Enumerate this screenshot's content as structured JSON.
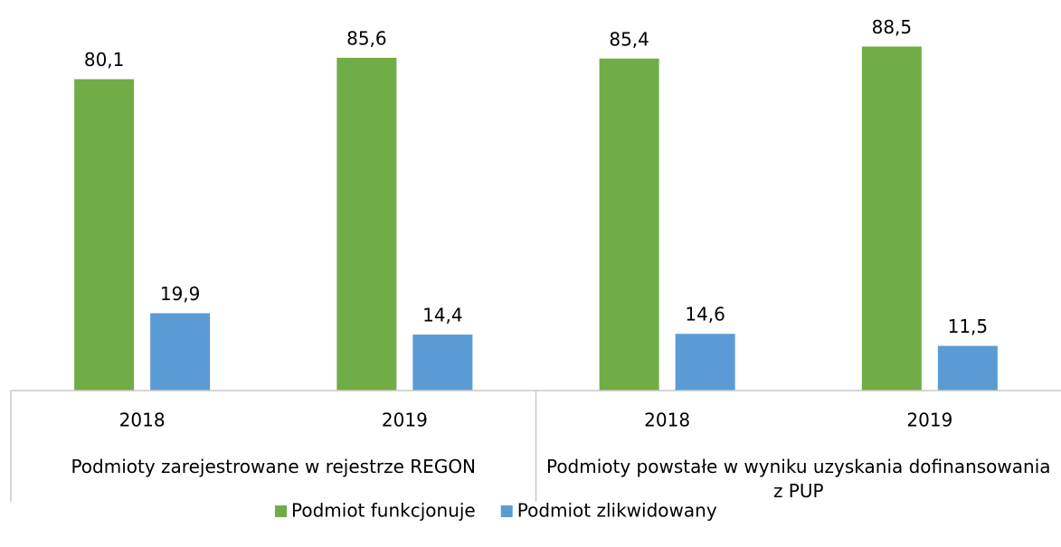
{
  "chart_data": {
    "type": "bar",
    "groups": [
      {
        "label": "Podmioty zarejestrowane w rejestrze REGON",
        "categories": [
          "2018",
          "2019"
        ]
      },
      {
        "label": "Podmioty powstałe w wyniku uzyskania dofinansowania z PUP",
        "categories": [
          "2018",
          "2019"
        ]
      }
    ],
    "series": [
      {
        "name": "Podmiot funkcjonuje",
        "color": "#70ad47",
        "values": [
          80.1,
          85.6,
          85.4,
          88.5
        ],
        "value_labels": [
          "80,1",
          "85,6",
          "85,4",
          "88,5"
        ]
      },
      {
        "name": "Podmiot zlikwidowany",
        "color": "#5b9bd5",
        "values": [
          19.9,
          14.4,
          14.6,
          11.5
        ],
        "value_labels": [
          "19,9",
          "14,4",
          "14,6",
          "11,5"
        ]
      }
    ],
    "ylim": [
      0,
      100
    ]
  }
}
